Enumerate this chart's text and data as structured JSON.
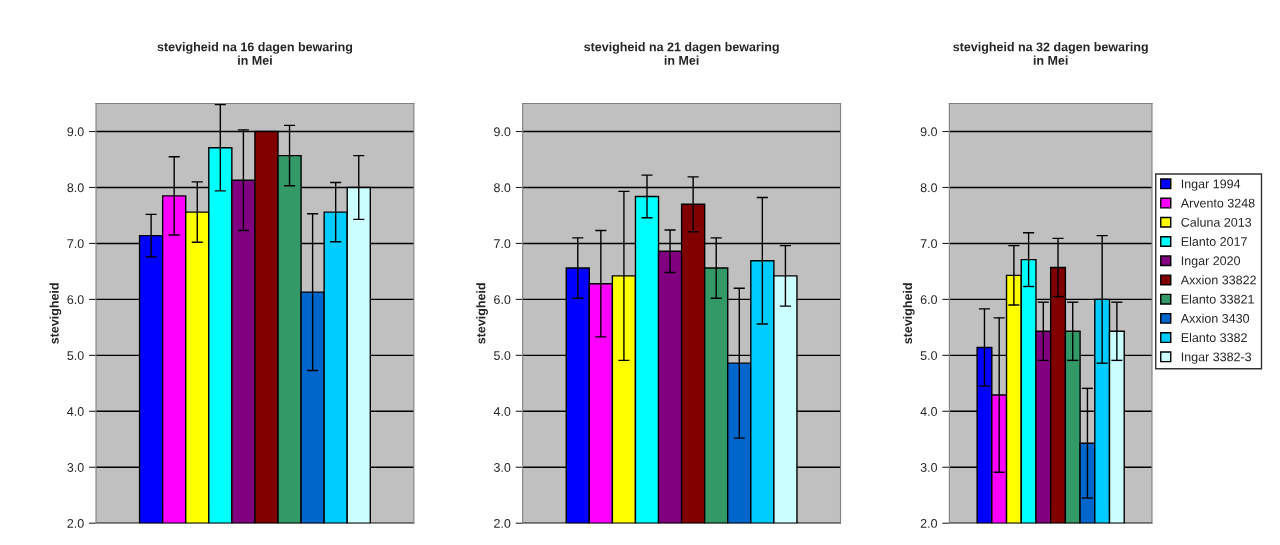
{
  "chart_data": [
    {
      "type": "bar",
      "title": "stevigheid na 16 dagen bewaring\nin Mei",
      "ylabel": "stevigheid",
      "categories": [
        null
      ],
      "ylim": [
        2.0,
        9.5
      ],
      "yticks": [
        {
          "value": 2,
          "label": "2.0"
        },
        {
          "value": 3,
          "label": "3.0"
        },
        {
          "value": 4,
          "label": "4.0"
        },
        {
          "value": 5,
          "label": "5.0"
        },
        {
          "value": 6,
          "label": "6.0"
        },
        {
          "value": 7,
          "label": "7.0"
        },
        {
          "value": 8,
          "label": "8.0"
        },
        {
          "value": 9,
          "label": "9.0"
        }
      ],
      "grid": "y",
      "legend": false,
      "series": [
        {
          "color": "#0000ff",
          "values": [
            7.14
          ],
          "errors": [
            0.38
          ]
        },
        {
          "color": "#ff00ff",
          "values": [
            7.85
          ],
          "errors": [
            0.7
          ]
        },
        {
          "color": "#ffff00",
          "values": [
            7.56
          ],
          "errors": [
            0.54
          ]
        },
        {
          "color": "#00ffff",
          "values": [
            8.71
          ],
          "errors": [
            0.77
          ]
        },
        {
          "color": "#800080",
          "values": [
            8.13
          ],
          "errors": [
            0.9
          ]
        },
        {
          "color": "#800000",
          "values": [
            9.0
          ],
          "errors": [
            null
          ]
        },
        {
          "color": "#339966",
          "values": [
            8.57
          ],
          "errors": [
            0.54
          ]
        },
        {
          "color": "#0066cc",
          "values": [
            6.13
          ],
          "errors": [
            1.4
          ]
        },
        {
          "color": "#00ccff",
          "values": [
            7.56
          ],
          "errors": [
            0.53
          ]
        },
        {
          "color": "#ccffff",
          "values": [
            8.0
          ],
          "errors": [
            0.57
          ]
        }
      ]
    },
    {
      "type": "bar",
      "title": "stevigheid na 21 dagen bewaring\nin Mei",
      "ylabel": "stevigheid",
      "categories": [
        null
      ],
      "ylim": [
        2.0,
        9.5
      ],
      "yticks": [
        {
          "value": 2,
          "label": "2.0"
        },
        {
          "value": 3,
          "label": "3.0"
        },
        {
          "value": 4,
          "label": "4.0"
        },
        {
          "value": 5,
          "label": "5.0"
        },
        {
          "value": 6,
          "label": "6.0"
        },
        {
          "value": 7,
          "label": "7.0"
        },
        {
          "value": 8,
          "label": "8.0"
        },
        {
          "value": 9,
          "label": "9.0"
        }
      ],
      "grid": "y",
      "legend": false,
      "series": [
        {
          "color": "#0000ff",
          "values": [
            6.56
          ],
          "errors": [
            0.54
          ]
        },
        {
          "color": "#ff00ff",
          "values": [
            6.28
          ],
          "errors": [
            0.95
          ]
        },
        {
          "color": "#ffff00",
          "values": [
            6.42
          ],
          "errors": [
            1.51
          ]
        },
        {
          "color": "#00ffff",
          "values": [
            7.84
          ],
          "errors": [
            0.38
          ]
        },
        {
          "color": "#800080",
          "values": [
            6.86
          ],
          "errors": [
            0.38
          ]
        },
        {
          "color": "#800000",
          "values": [
            7.7
          ],
          "errors": [
            0.49
          ]
        },
        {
          "color": "#339966",
          "values": [
            6.56
          ],
          "errors": [
            0.54
          ]
        },
        {
          "color": "#0066cc",
          "values": [
            4.86
          ],
          "errors": [
            1.34
          ]
        },
        {
          "color": "#00ccff",
          "values": [
            6.69
          ],
          "errors": [
            1.13
          ]
        },
        {
          "color": "#ccffff",
          "values": [
            6.42
          ],
          "errors": [
            0.54
          ]
        }
      ]
    },
    {
      "type": "bar",
      "title": "stevigheid na 32 dagen bewaring\nin Mei",
      "ylabel": "stevigheid",
      "categories": [
        null
      ],
      "ylim": [
        2.0,
        9.5
      ],
      "yticks": [
        {
          "value": 2,
          "label": "2.0"
        },
        {
          "value": 3,
          "label": "3.0"
        },
        {
          "value": 4,
          "label": "4.0"
        },
        {
          "value": 5,
          "label": "5.0"
        },
        {
          "value": 6,
          "label": "6.0"
        },
        {
          "value": 7,
          "label": "7.0"
        },
        {
          "value": 8,
          "label": "8.0"
        },
        {
          "value": 9,
          "label": "9.0"
        }
      ],
      "grid": "y",
      "legend": "right",
      "series": [
        {
          "name": "Ingar 1994",
          "color": "#0000ff",
          "values": [
            5.14
          ],
          "errors": [
            0.69
          ]
        },
        {
          "name": "Arvento 3248",
          "color": "#ff00ff",
          "values": [
            4.29
          ],
          "errors": [
            1.38
          ]
        },
        {
          "name": "Caluna 2013",
          "color": "#ffff00",
          "values": [
            6.43
          ],
          "errors": [
            0.53
          ]
        },
        {
          "name": "Elanto 2017",
          "color": "#00ffff",
          "values": [
            6.71
          ],
          "errors": [
            0.48
          ]
        },
        {
          "name": "Ingar 2020",
          "color": "#800080",
          "values": [
            5.43
          ],
          "errors": [
            0.52
          ]
        },
        {
          "name": "Axxion 33822",
          "color": "#800000",
          "values": [
            6.57
          ],
          "errors": [
            0.52
          ]
        },
        {
          "name": "Elanto 33821",
          "color": "#339966",
          "values": [
            5.43
          ],
          "errors": [
            0.52
          ]
        },
        {
          "name": "Axxion 3430",
          "color": "#0066cc",
          "values": [
            3.43
          ],
          "errors": [
            0.98
          ]
        },
        {
          "name": "Elanto 3382",
          "color": "#00ccff",
          "values": [
            6.0
          ],
          "errors": [
            1.14
          ]
        },
        {
          "name": "Ingar 3382-3",
          "color": "#ccffff",
          "values": [
            5.43
          ],
          "errors": [
            0.52
          ]
        }
      ]
    }
  ]
}
